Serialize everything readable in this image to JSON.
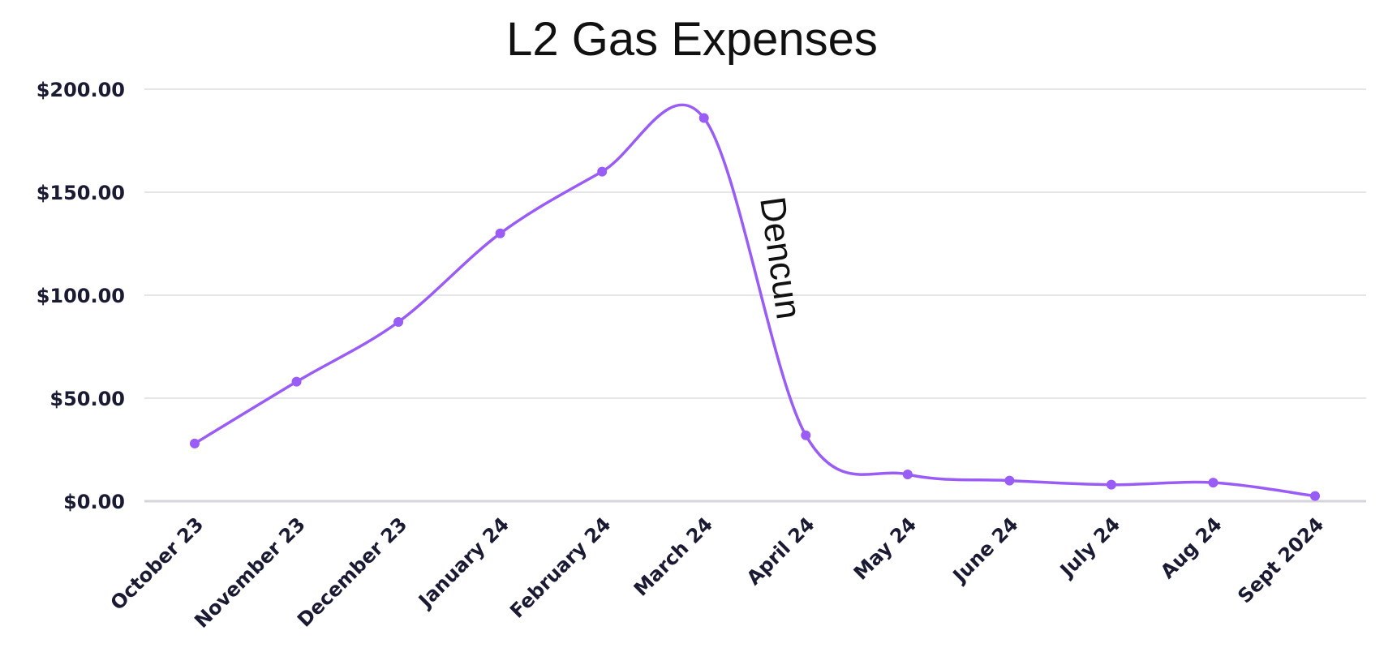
{
  "chart_data": {
    "type": "line",
    "title": "L2 Gas Expenses",
    "xlabel": "",
    "ylabel": "",
    "categories": [
      "October 23",
      "November 23",
      "December 23",
      "January 24",
      "February 24",
      "March 24",
      "April 24",
      "May 24",
      "June 24",
      "July 24",
      "Aug 24",
      "Sept 2024"
    ],
    "series": [
      {
        "values": [
          28,
          58,
          87,
          130,
          160,
          186,
          32,
          13,
          10,
          8,
          9,
          2.5
        ]
      }
    ],
    "ylim": [
      0,
      200
    ],
    "yticks": [
      "$0.00",
      "$50.00",
      "$100.00",
      "$150.00",
      "$200.00"
    ],
    "ytick_values": [
      0,
      50,
      100,
      150,
      200
    ],
    "grid": true,
    "legend": "none",
    "line_color": "#9a5cf6",
    "annotations": [
      {
        "text": "Dencun",
        "between": [
          "March 24",
          "April 24"
        ]
      }
    ]
  }
}
